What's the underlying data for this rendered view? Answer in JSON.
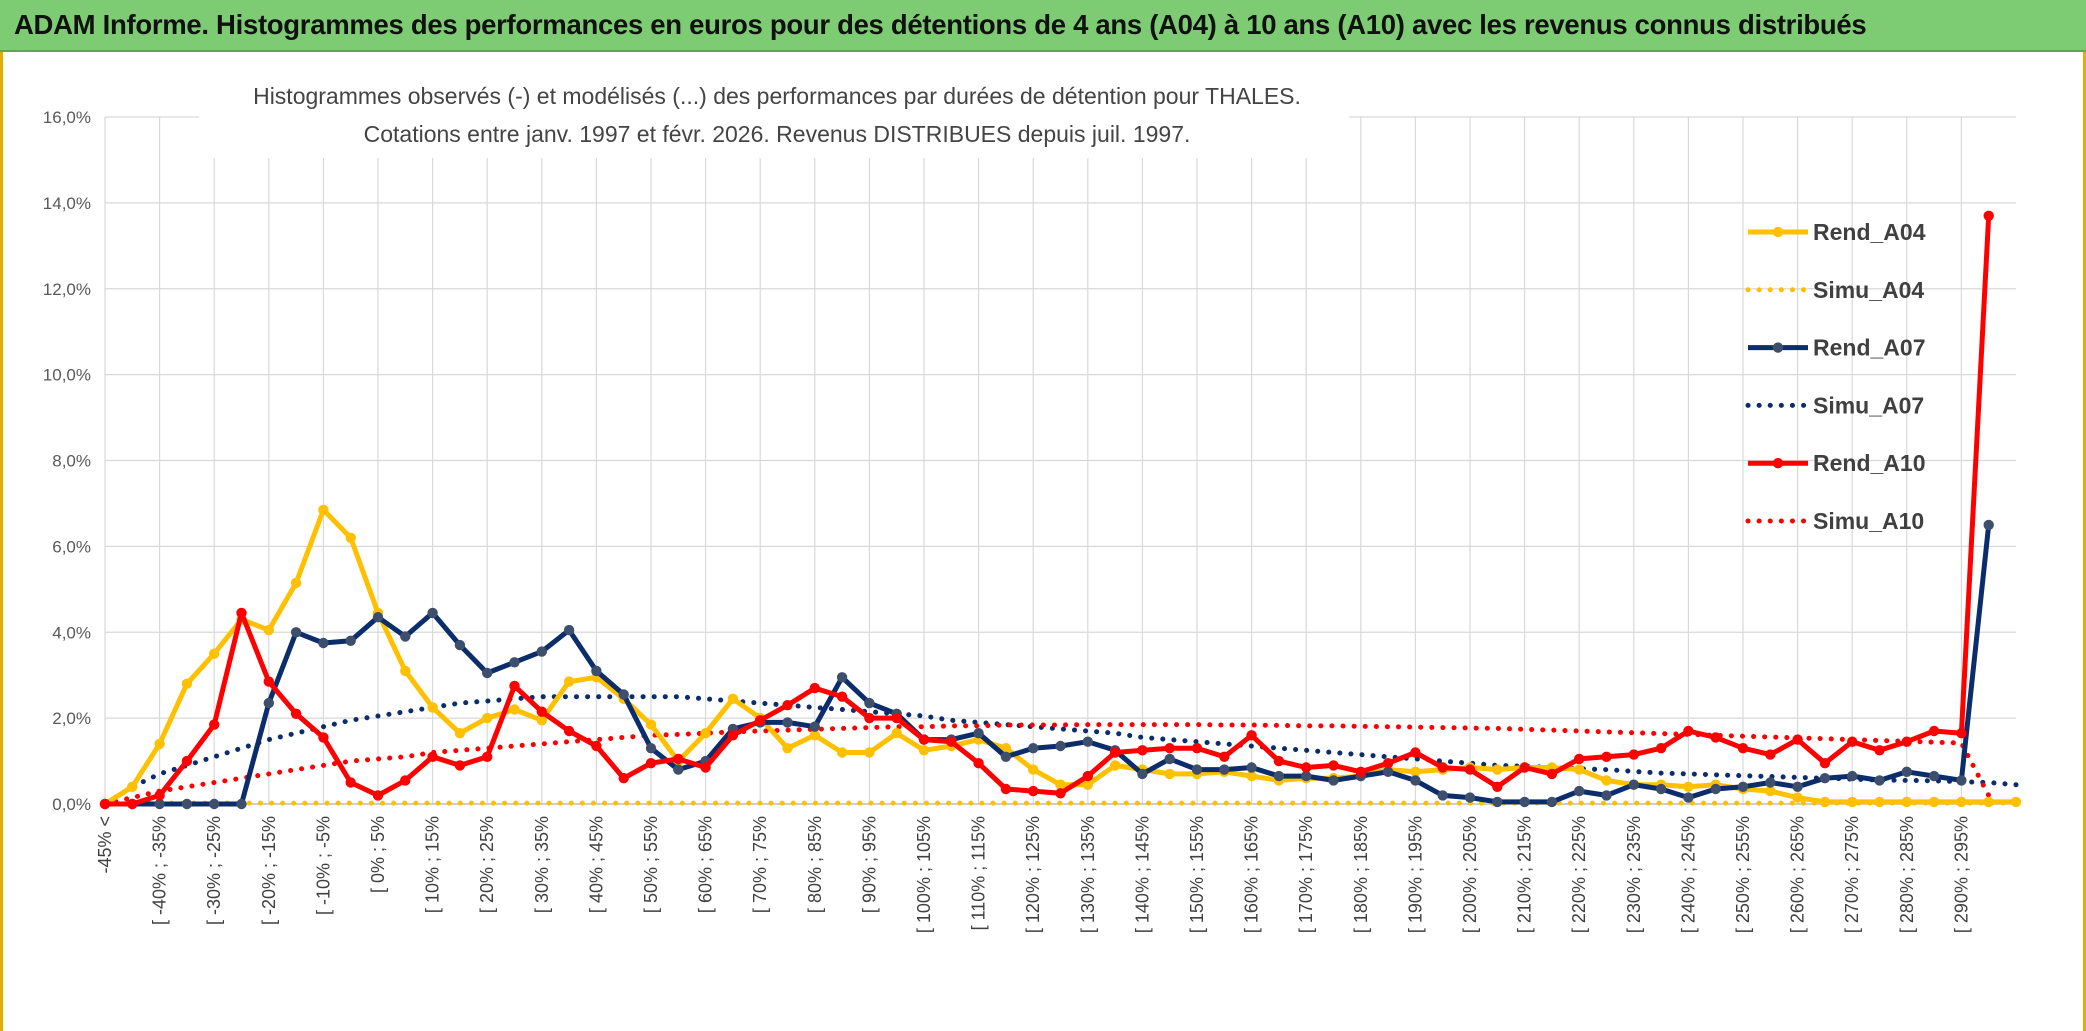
{
  "header": {
    "title": "ADAM Informe. Histogrammes des performances en euros pour des détentions de 4 ans (A04) à 10 ans (A10) avec les revenus connus distribués"
  },
  "chart_data": {
    "type": "line",
    "title": "Histogrammes observés (-) et modélisés (...) des performances par durées de détention pour THALES.",
    "subtitle": "Cotations entre janv. 1997 et févr. 2026. Revenus DISTRIBUES depuis juil. 1997.",
    "ylim": [
      0,
      16
    ],
    "y_ticks": [
      "0,0%",
      "2,0%",
      "4,0%",
      "6,0%",
      "8,0%",
      "10,0%",
      "12,0%",
      "14,0%",
      "16,0%"
    ],
    "grid": true,
    "legend_position": "right",
    "x_labels": [
      "-45% <",
      "[ -40% ; -35%",
      "[ -30% ; -25%",
      "[ -20% ; -15%",
      "[ -10% ; -5%",
      "[ 0% ; 5%",
      "[ 10% ; 15%",
      "[ 20% ; 25%",
      "[ 30% ; 35%",
      "[ 40% ; 45%",
      "[ 50% ; 55%",
      "[ 60% ; 65%",
      "[ 70% ; 75%",
      "[ 80% ; 85%",
      "[ 90% ; 95%",
      "[ 100% ; 105%",
      "[ 110% ; 115%",
      "[ 120% ; 125%",
      "[ 130% ; 135%",
      "[ 140% ; 145%",
      "[ 150% ; 155%",
      "[ 160% ; 165%",
      "[ 170% ; 175%",
      "[ 180% ; 185%",
      "[ 190% ; 195%",
      "[ 200% ; 205%",
      "[ 210% ; 215%",
      "[ 220% ; 225%",
      "[ 230% ; 235%",
      "[ 240% ; 245%",
      "[ 250% ; 255%",
      "[ 260% ; 265%",
      "[ 270% ; 275%",
      "[ 280% ; 285%",
      "[ 290% ; 295%"
    ],
    "series": [
      {
        "name": "Rend_A04",
        "style": "solid",
        "color": "#ffc000",
        "values": [
          0.0,
          0.4,
          1.4,
          2.8,
          3.5,
          4.3,
          4.05,
          5.15,
          6.85,
          6.2,
          4.45,
          3.1,
          2.25,
          1.65,
          2.0,
          2.2,
          1.95,
          2.85,
          2.95,
          2.45,
          1.85,
          1.0,
          1.65,
          2.45,
          2.0,
          1.3,
          1.6,
          1.2,
          1.2,
          1.65,
          1.25,
          1.35,
          1.5,
          1.3,
          0.8,
          0.45,
          0.45,
          0.9,
          0.8,
          0.7,
          0.7,
          0.75,
          0.65,
          0.55,
          0.6,
          0.6,
          0.65,
          0.8,
          0.75,
          0.8,
          0.85,
          0.8,
          0.85,
          0.85,
          0.8,
          0.55,
          0.45,
          0.45,
          0.4,
          0.45,
          0.35,
          0.3,
          0.15,
          0.05,
          0.05,
          0.05,
          0.05,
          0.05,
          0.05,
          0.05,
          0.05
        ]
      },
      {
        "name": "Simu_A04",
        "style": "dotted",
        "color": "#ffc000",
        "values": [
          0.02,
          0.02,
          0.02,
          0.02,
          0.02,
          0.02,
          0.02,
          0.02,
          0.02,
          0.02,
          0.02,
          0.02,
          0.02,
          0.02,
          0.02,
          0.02,
          0.02,
          0.02,
          0.02,
          0.02,
          0.02,
          0.02,
          0.02,
          0.02,
          0.02,
          0.02,
          0.02,
          0.02,
          0.02,
          0.02,
          0.02,
          0.02,
          0.02,
          0.02,
          0.02,
          0.02,
          0.02,
          0.02,
          0.02,
          0.02,
          0.02,
          0.02,
          0.02,
          0.02,
          0.02,
          0.02,
          0.02,
          0.02,
          0.02,
          0.02,
          0.02,
          0.02,
          0.02,
          0.02,
          0.02,
          0.02,
          0.02,
          0.02,
          0.02,
          0.02,
          0.02,
          0.02,
          0.02,
          0.02,
          0.02,
          0.02,
          0.02,
          0.02,
          0.02,
          0.02,
          0.02
        ]
      },
      {
        "name": "Rend_A07",
        "style": "solid",
        "color": "#0b2d6b",
        "values": [
          0.0,
          0.0,
          0.0,
          0.0,
          0.0,
          0.0,
          2.35,
          4.0,
          3.75,
          3.8,
          4.35,
          3.9,
          4.45,
          3.7,
          3.05,
          3.3,
          3.55,
          4.05,
          3.1,
          2.55,
          1.3,
          0.8,
          1.0,
          1.75,
          1.9,
          1.9,
          1.8,
          2.95,
          2.35,
          2.1,
          1.5,
          1.5,
          1.65,
          1.1,
          1.3,
          1.35,
          1.45,
          1.25,
          0.7,
          1.05,
          0.8,
          0.8,
          0.85,
          0.65,
          0.65,
          0.55,
          0.65,
          0.75,
          0.55,
          0.2,
          0.15,
          0.05,
          0.05,
          0.05,
          0.3,
          0.2,
          0.45,
          0.35,
          0.15,
          0.35,
          0.4,
          0.5,
          0.4,
          0.6,
          0.65,
          0.55,
          0.75,
          0.65,
          0.55,
          6.5
        ]
      },
      {
        "name": "Simu_A07",
        "style": "dotted",
        "color": "#0b2d6b",
        "values": [
          0.0,
          0.4,
          0.7,
          0.9,
          1.1,
          1.3,
          1.5,
          1.65,
          1.8,
          1.95,
          2.05,
          2.15,
          2.25,
          2.35,
          2.4,
          2.45,
          2.5,
          2.5,
          2.5,
          2.5,
          2.5,
          2.5,
          2.45,
          2.4,
          2.35,
          2.3,
          2.25,
          2.2,
          2.15,
          2.1,
          2.05,
          1.95,
          1.9,
          1.85,
          1.8,
          1.75,
          1.7,
          1.65,
          1.55,
          1.5,
          1.45,
          1.4,
          1.35,
          1.3,
          1.25,
          1.2,
          1.15,
          1.1,
          1.05,
          1.0,
          0.95,
          0.9,
          0.88,
          0.85,
          0.82,
          0.8,
          0.76,
          0.72,
          0.7,
          0.68,
          0.66,
          0.64,
          0.62,
          0.6,
          0.58,
          0.56,
          0.55,
          0.54,
          0.52,
          0.5,
          0.45
        ]
      },
      {
        "name": "Rend_A10",
        "style": "solid",
        "color": "#ff0000",
        "values": [
          0.0,
          0.0,
          0.2,
          1.0,
          1.85,
          4.45,
          2.85,
          2.1,
          1.55,
          0.5,
          0.2,
          0.55,
          1.1,
          0.9,
          1.1,
          2.75,
          2.15,
          1.7,
          1.35,
          0.6,
          0.95,
          1.05,
          0.85,
          1.6,
          1.95,
          2.3,
          2.7,
          2.5,
          2.0,
          2.0,
          1.5,
          1.45,
          0.95,
          0.35,
          0.3,
          0.25,
          0.65,
          1.2,
          1.25,
          1.3,
          1.3,
          1.1,
          1.6,
          1.0,
          0.85,
          0.9,
          0.75,
          0.95,
          1.2,
          0.85,
          0.8,
          0.4,
          0.85,
          0.7,
          1.05,
          1.1,
          1.15,
          1.3,
          1.7,
          1.55,
          1.3,
          1.15,
          1.5,
          0.95,
          1.45,
          1.25,
          1.45,
          1.7,
          1.65,
          13.7
        ]
      },
      {
        "name": "Simu_A10",
        "style": "dotted",
        "color": "#ff0000",
        "values": [
          0.0,
          0.15,
          0.3,
          0.4,
          0.5,
          0.6,
          0.7,
          0.8,
          0.9,
          1.0,
          1.05,
          1.1,
          1.2,
          1.25,
          1.3,
          1.35,
          1.4,
          1.45,
          1.5,
          1.55,
          1.6,
          1.62,
          1.65,
          1.68,
          1.7,
          1.72,
          1.74,
          1.76,
          1.78,
          1.8,
          1.8,
          1.82,
          1.82,
          1.84,
          1.84,
          1.84,
          1.85,
          1.85,
          1.85,
          1.85,
          1.85,
          1.84,
          1.84,
          1.83,
          1.82,
          1.82,
          1.81,
          1.8,
          1.79,
          1.78,
          1.77,
          1.76,
          1.74,
          1.72,
          1.7,
          1.68,
          1.66,
          1.64,
          1.62,
          1.6,
          1.58,
          1.56,
          1.54,
          1.52,
          1.5,
          1.48,
          1.46,
          1.44,
          1.42,
          0.2
        ]
      }
    ]
  }
}
